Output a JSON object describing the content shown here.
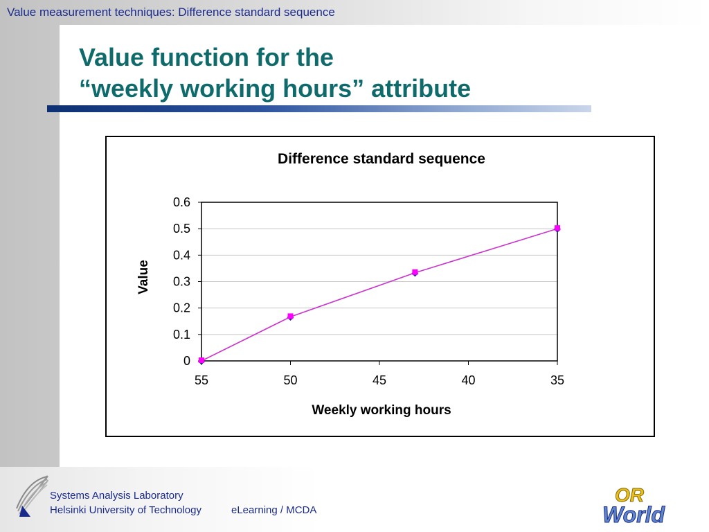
{
  "header": {
    "text": "Value measurement techniques: Difference standard sequence"
  },
  "slide": {
    "title_line1": "Value function for the",
    "title_line2": "“weekly working hours” attribute"
  },
  "chart_data": {
    "type": "line",
    "title": "Difference standard sequence",
    "xlabel": "Weekly working hours",
    "ylabel": "Value",
    "x_reversed": true,
    "xlim": [
      55,
      35
    ],
    "ylim": [
      0,
      0.6
    ],
    "x_ticks": [
      "55",
      "50",
      "45",
      "40",
      "35"
    ],
    "y_ticks": [
      "0",
      "0.1",
      "0.2",
      "0.3",
      "0.4",
      "0.5",
      "0.6"
    ],
    "grid": true,
    "series": [
      {
        "x": [
          55,
          50,
          43,
          35
        ],
        "values": [
          0,
          0.1667,
          0.3333,
          0.5
        ],
        "color": "#cc33cc",
        "marker_colors": [
          "#ff00ff",
          "#1a2a8c"
        ]
      }
    ]
  },
  "footer": {
    "lab": "Systems Analysis Laboratory",
    "university": "Helsinki University of Technology",
    "course": "eLearning / MCDA"
  },
  "logos": {
    "or_world_line1": "OR",
    "or_world_line2": "World"
  },
  "colors": {
    "title": "#0f6b6b",
    "footer_text": "#1a2a8c",
    "rule_dark": "#0d2f73",
    "line": "#cc33cc",
    "marker": "#ff00ff"
  }
}
